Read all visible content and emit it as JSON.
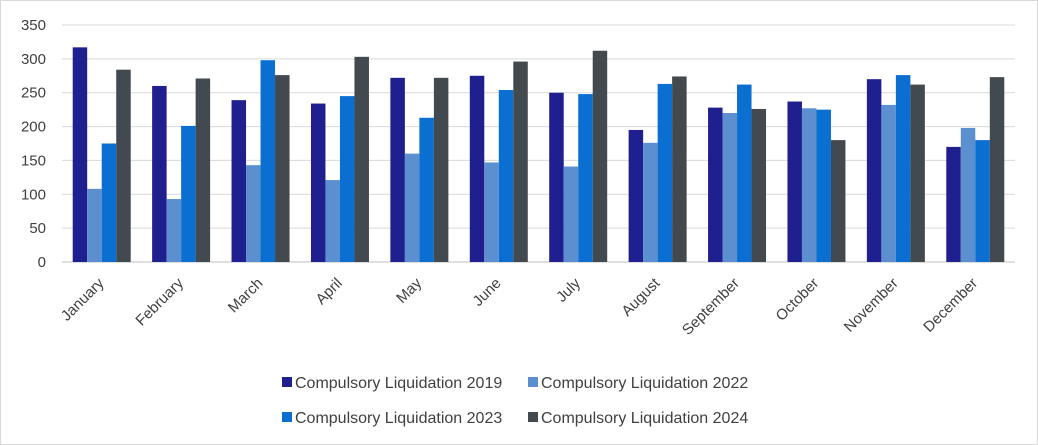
{
  "chart_data": {
    "type": "bar",
    "title": "",
    "xlabel": "",
    "ylabel": "",
    "ylim": [
      0,
      350
    ],
    "yticks": [
      0,
      50,
      100,
      150,
      200,
      250,
      300,
      350
    ],
    "grid": true,
    "legend_position": "bottom",
    "categories": [
      "January",
      "February",
      "March",
      "April",
      "May",
      "June",
      "July",
      "August",
      "September",
      "October",
      "November",
      "December"
    ],
    "series": [
      {
        "name": "Compulsory Liquidation 2019",
        "color": "#1f1f8f",
        "values": [
          317,
          260,
          239,
          234,
          272,
          275,
          250,
          195,
          228,
          237,
          270,
          170
        ]
      },
      {
        "name": "Compulsory Liquidation 2022",
        "color": "#5b8fcf",
        "values": [
          108,
          93,
          143,
          121,
          160,
          147,
          141,
          176,
          220,
          227,
          232,
          198
        ]
      },
      {
        "name": "Compulsory Liquidation 2023",
        "color": "#0a6fd1",
        "values": [
          175,
          201,
          298,
          245,
          213,
          254,
          248,
          263,
          262,
          225,
          276,
          180
        ]
      },
      {
        "name": "Compulsory Liquidation 2024",
        "color": "#434a4f",
        "values": [
          284,
          271,
          276,
          303,
          272,
          296,
          312,
          274,
          226,
          180,
          262,
          273
        ]
      }
    ]
  }
}
